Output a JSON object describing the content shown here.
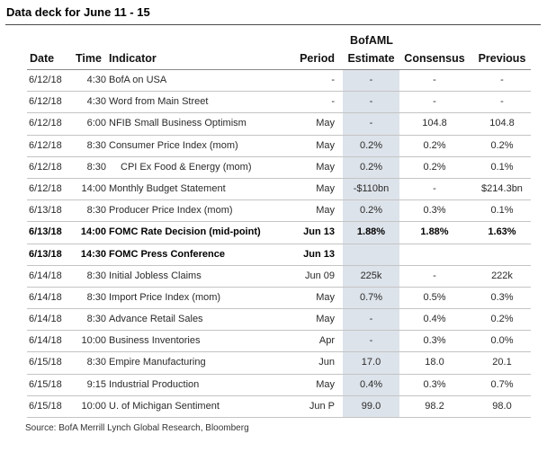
{
  "title": "Data deck for June 11 - 15",
  "headers": {
    "date": "Date",
    "time": "Time",
    "indicator": "Indicator",
    "period": "Period",
    "estimate_top": "BofAML",
    "estimate": "Estimate",
    "consensus": "Consensus",
    "previous": "Previous"
  },
  "rows": [
    {
      "date": "6/12/18",
      "time": "4:30",
      "indicator": "BofA on USA",
      "period": "-",
      "estimate": "-",
      "consensus": "-",
      "previous": "-",
      "bold": false,
      "indent": false
    },
    {
      "date": "6/12/18",
      "time": "4:30",
      "indicator": "Word from Main Street",
      "period": "-",
      "estimate": "-",
      "consensus": "-",
      "previous": "-",
      "bold": false,
      "indent": false
    },
    {
      "date": "6/12/18",
      "time": "6:00",
      "indicator": "NFIB Small Business Optimism",
      "period": "May",
      "estimate": "-",
      "consensus": "104.8",
      "previous": "104.8",
      "bold": false,
      "indent": false
    },
    {
      "date": "6/12/18",
      "time": "8:30",
      "indicator": "Consumer Price Index (mom)",
      "period": "May",
      "estimate": "0.2%",
      "consensus": "0.2%",
      "previous": "0.2%",
      "bold": false,
      "indent": false
    },
    {
      "date": "6/12/18",
      "time": "8:30",
      "indicator": "CPI Ex Food & Energy (mom)",
      "period": "May",
      "estimate": "0.2%",
      "consensus": "0.2%",
      "previous": "0.1%",
      "bold": false,
      "indent": true
    },
    {
      "date": "6/12/18",
      "time": "14:00",
      "indicator": "Monthly Budget Statement",
      "period": "May",
      "estimate": "-$110bn",
      "consensus": "-",
      "previous": "$214.3bn",
      "bold": false,
      "indent": false
    },
    {
      "date": "6/13/18",
      "time": "8:30",
      "indicator": "Producer Price Index (mom)",
      "period": "May",
      "estimate": "0.2%",
      "consensus": "0.3%",
      "previous": "0.1%",
      "bold": false,
      "indent": false
    },
    {
      "date": "6/13/18",
      "time": "14:00",
      "indicator": "FOMC Rate Decision (mid-point)",
      "period": "Jun 13",
      "estimate": "1.88%",
      "consensus": "1.88%",
      "previous": "1.63%",
      "bold": true,
      "indent": false
    },
    {
      "date": "6/13/18",
      "time": "14:30",
      "indicator": "FOMC Press Conference",
      "period": "Jun 13",
      "estimate": "",
      "consensus": "",
      "previous": "",
      "bold": true,
      "indent": false
    },
    {
      "date": "6/14/18",
      "time": "8:30",
      "indicator": "Initial Jobless Claims",
      "period": "Jun 09",
      "estimate": "225k",
      "consensus": "-",
      "previous": "222k",
      "bold": false,
      "indent": false
    },
    {
      "date": "6/14/18",
      "time": "8:30",
      "indicator": "Import Price Index (mom)",
      "period": "May",
      "estimate": "0.7%",
      "consensus": "0.5%",
      "previous": "0.3%",
      "bold": false,
      "indent": false
    },
    {
      "date": "6/14/18",
      "time": "8:30",
      "indicator": "Advance Retail Sales",
      "period": "May",
      "estimate": "-",
      "consensus": "0.4%",
      "previous": "0.2%",
      "bold": false,
      "indent": false
    },
    {
      "date": "6/14/18",
      "time": "10:00",
      "indicator": "Business Inventories",
      "period": "Apr",
      "estimate": "-",
      "consensus": "0.3%",
      "previous": "0.0%",
      "bold": false,
      "indent": false
    },
    {
      "date": "6/15/18",
      "time": "8:30",
      "indicator": "Empire Manufacturing",
      "period": "Jun",
      "estimate": "17.0",
      "consensus": "18.0",
      "previous": "20.1",
      "bold": false,
      "indent": false
    },
    {
      "date": "6/15/18",
      "time": "9:15",
      "indicator": "Industrial Production",
      "period": "May",
      "estimate": "0.4%",
      "consensus": "0.3%",
      "previous": "0.7%",
      "bold": false,
      "indent": false
    },
    {
      "date": "6/15/18",
      "time": "10:00",
      "indicator": "U. of Michigan Sentiment",
      "period": "Jun P",
      "estimate": "99.0",
      "consensus": "98.2",
      "previous": "98.0",
      "bold": false,
      "indent": false
    }
  ],
  "source": "Source: BofA Merrill Lynch Global Research, Bloomberg",
  "colors": {
    "estimate_shade": "#dde3ea"
  }
}
